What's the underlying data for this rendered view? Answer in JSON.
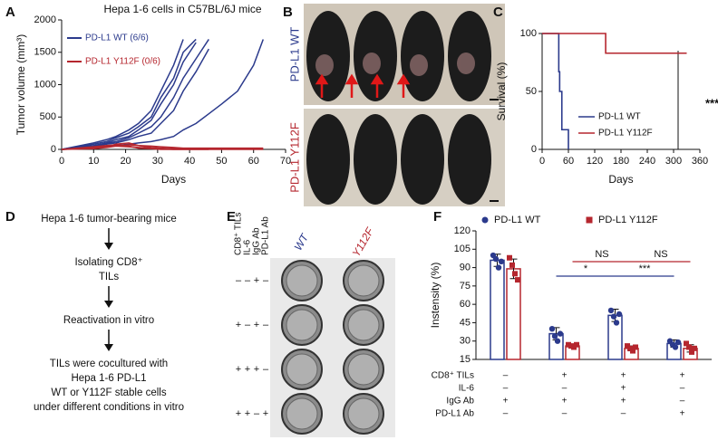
{
  "panel_labels": [
    "A",
    "B",
    "C",
    "D",
    "E",
    "F"
  ],
  "photos": {
    "top_label": "PD-L1 WT",
    "bottom_label": "PD-L1 Y112F"
  },
  "flow": {
    "steps": [
      [
        "Hepa 1-6 tumor-bearing mice"
      ],
      [
        "Isolating CD8⁺",
        "TILs"
      ],
      [
        "Reactivation in vitro"
      ],
      [
        "TILs were cocultured with",
        "Hepa 1-6 PD-L1",
        "WT or Y112F stable cells",
        "under different conditions in vitro"
      ]
    ]
  },
  "plate": {
    "row_headers": [
      "CD8⁺ TILs",
      "IL-6",
      "IgG Ab",
      "PD-L1 Ab"
    ],
    "columns": [
      "WT",
      "Y112F"
    ],
    "rows": [
      [
        "–",
        "–",
        "+",
        "–"
      ],
      [
        "+",
        "–",
        "+",
        "–"
      ],
      [
        "+",
        "+",
        "+",
        "–"
      ],
      [
        "+",
        "+",
        "–",
        "+"
      ]
    ]
  },
  "chart_data": [
    {
      "type": "line",
      "title": "Hepa 1-6 cells in C57BL/6J mice",
      "x_label": "Days",
      "y_label": "Tumor volume (mm³)",
      "x": [
        0,
        10,
        14,
        17,
        21,
        24,
        28,
        31,
        35,
        38,
        42,
        46,
        50,
        55,
        60,
        63
      ],
      "groups": [
        {
          "name": "PD-L1 WT (6/6)",
          "color": "#2b3a8c",
          "series": [
            [
              0,
              100,
              150,
              200,
              300,
              400,
              600,
              900,
              1300,
              1700,
              null,
              null,
              null,
              null,
              null,
              null
            ],
            [
              0,
              80,
              120,
              180,
              250,
              350,
              500,
              800,
              1100,
              1500,
              1700,
              null,
              null,
              null,
              null,
              null
            ],
            [
              0,
              60,
              100,
              150,
              200,
              300,
              450,
              700,
              1000,
              1350,
              1650,
              null,
              null,
              null,
              null,
              null
            ],
            [
              0,
              50,
              90,
              120,
              180,
              250,
              350,
              500,
              800,
              1100,
              1400,
              1700,
              null,
              null,
              null,
              null
            ],
            [
              0,
              40,
              80,
              100,
              150,
              200,
              250,
              400,
              600,
              900,
              1200,
              1550,
              null,
              null,
              null,
              null
            ],
            [
              0,
              20,
              50,
              60,
              80,
              100,
              120,
              150,
              200,
              300,
              400,
              550,
              700,
              900,
              1300,
              1700
            ]
          ]
        },
        {
          "name": "PD-L1 Y112F (0/6)",
          "color": "#b5262e",
          "series": [
            [
              0,
              30,
              50,
              60,
              70,
              60,
              50,
              40,
              30,
              20,
              20,
              20,
              20,
              20,
              20,
              20
            ],
            [
              0,
              20,
              40,
              80,
              100,
              60,
              30,
              20,
              10,
              10,
              10,
              10,
              10,
              10,
              10,
              10
            ],
            [
              0,
              10,
              30,
              50,
              40,
              30,
              20,
              10,
              0,
              0,
              0,
              0,
              0,
              0,
              0,
              0
            ],
            [
              0,
              40,
              60,
              70,
              50,
              20,
              10,
              0,
              0,
              0,
              0,
              0,
              null,
              null,
              null,
              null
            ]
          ]
        }
      ],
      "xlim": [
        0,
        70
      ],
      "xticks": [
        0,
        10,
        20,
        30,
        40,
        50,
        60,
        70
      ],
      "ylim": [
        0,
        2000
      ],
      "yticks": [
        0,
        500,
        1000,
        1500,
        2000
      ]
    },
    {
      "type": "step",
      "x_label": "Days",
      "y_label": "Survival (%)",
      "annotation": "****",
      "series": [
        {
          "name": "PD-L1 WT",
          "color": "#2b3a8c",
          "x": [
            0,
            38,
            40,
            45,
            60
          ],
          "values": [
            100,
            67,
            50,
            17,
            0
          ]
        },
        {
          "name": "PD-L1 Y112F",
          "color": "#b5262e",
          "x": [
            0,
            145,
            330
          ],
          "values": [
            100,
            83,
            83
          ]
        }
      ],
      "xlim": [
        0,
        360
      ],
      "xticks": [
        0,
        60,
        120,
        180,
        240,
        300,
        360
      ],
      "ylim": [
        0,
        100
      ],
      "yticks": [
        0,
        50,
        100
      ]
    },
    {
      "type": "bar",
      "y_label": "Instensity (%)",
      "categories": [
        null,
        null,
        null,
        null
      ],
      "series": [
        {
          "name": "PD-L1 WT",
          "color": "#2b3a8c",
          "values": [
            96,
            36,
            51,
            28
          ],
          "errors": [
            5,
            5,
            5,
            3
          ],
          "points": [
            [
              100,
              97,
              90,
              95
            ],
            [
              40,
              34,
              30,
              36
            ],
            [
              55,
              50,
              45,
              52
            ],
            [
              30,
              27,
              25,
              29
            ]
          ]
        },
        {
          "name": "PD-L1 Y112F",
          "color": "#b5262e",
          "values": [
            89,
            26,
            24,
            24
          ],
          "errors": [
            8,
            1,
            2,
            3
          ],
          "points": [
            [
              98,
              92,
              85,
              80
            ],
            [
              27,
              26,
              25,
              27
            ],
            [
              26,
              24,
              22,
              25
            ],
            [
              28,
              25,
              21,
              24
            ]
          ]
        }
      ],
      "conditions": [
        {
          "label": "CD8⁺ TILs",
          "marks": [
            "–",
            "+",
            "+",
            "+"
          ]
        },
        {
          "label": "IL-6",
          "marks": [
            "–",
            "–",
            "+",
            "–"
          ]
        },
        {
          "label": "IgG Ab",
          "marks": [
            "+",
            "+",
            "+",
            "–"
          ]
        },
        {
          "label": "PD-L1 Ab",
          "marks": [
            "–",
            "–",
            "–",
            "+"
          ]
        }
      ],
      "annotations": [
        {
          "text": "*",
          "color": "#2b3a8c"
        },
        {
          "text": "***",
          "color": "#2b3a8c"
        },
        {
          "text": "NS",
          "color": "#b5262e"
        },
        {
          "text": "NS",
          "color": "#b5262e"
        }
      ],
      "ylim": [
        15,
        120
      ],
      "yticks": [
        15,
        30,
        45,
        60,
        75,
        90,
        105,
        120
      ]
    }
  ]
}
